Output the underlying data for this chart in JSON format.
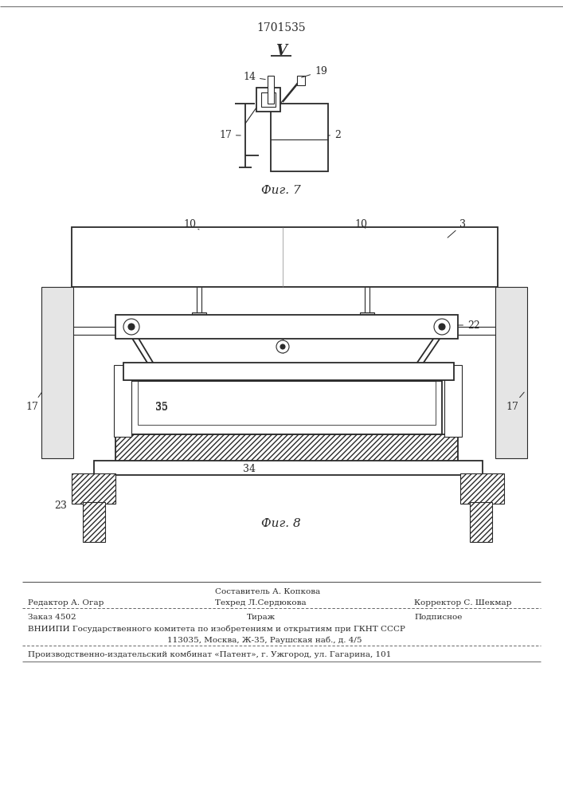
{
  "patent_number": "1701535",
  "fig7_label": "Фиг. 7",
  "fig8_label": "Фиг. 8",
  "view_label": "V",
  "bg_color": "#ffffff",
  "line_color": "#2a2a2a",
  "footer": {
    "line1_left": "Редактор А. Огар",
    "line1_mid": "Составитель А. Копкова",
    "line1_mid2": "Техред Л.Сердюкова",
    "line1_right": "Корректор С. Шекмар",
    "line2_left": "Заказ 4502",
    "line2_mid": "Тираж",
    "line2_right": "Подписное",
    "line3": "ВНИИПИ Государственного комитета по изобретениям и открытиям при ГКНТ СССР",
    "line4": "113035, Москва, Ж-35, Раушская наб., д. 4/5",
    "line5": "Производственно-издательский комбинат «Патент», г. Ужгород, ул. Гагарина, 101"
  }
}
